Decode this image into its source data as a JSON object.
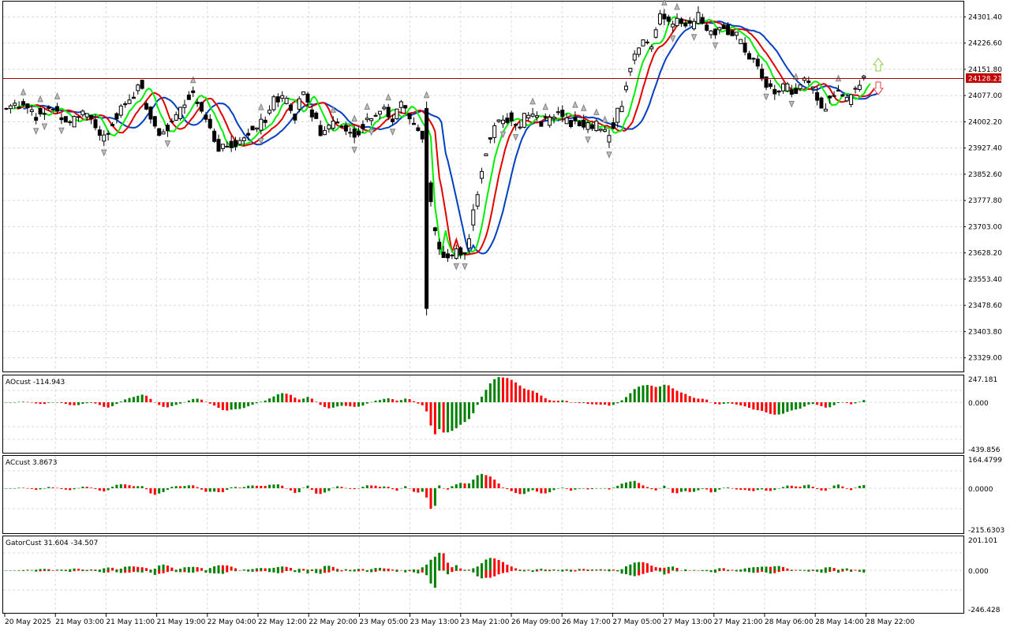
{
  "price_panel": {
    "price_labels": [
      "24301.40",
      "24226.60",
      "24151.80",
      "24077.00",
      "24002.20",
      "23927.40",
      "23852.60",
      "23777.80",
      "23703.00",
      "23628.20",
      "23553.40",
      "23478.60",
      "23403.80",
      "23329.00"
    ],
    "current_price": "24128.21"
  },
  "ao_panel": {
    "title": "AOcust -114.943",
    "axis_labels": [
      "247.181",
      "0.000",
      "-439.856"
    ]
  },
  "ac_panel": {
    "title": "ACcust 3.8673",
    "axis_labels": [
      "164.4799",
      "0.0000",
      "-215.6303"
    ]
  },
  "gator_panel": {
    "title": "GatorCust 31.604 -34.507",
    "axis_labels": [
      "201.101",
      "0.000",
      "-246.428"
    ]
  },
  "time_labels": [
    "20 May 2025",
    "21 May 03:00",
    "21 May 11:00",
    "21 May 19:00",
    "22 May 04:00",
    "22 May 12:00",
    "22 May 20:00",
    "23 May 05:00",
    "23 May 13:00",
    "23 May 21:00",
    "26 May 09:00",
    "26 May 17:00",
    "27 May 05:00",
    "27 May 13:00",
    "27 May 21:00",
    "28 May 06:00",
    "28 May 14:00",
    "28 May 22:00"
  ],
  "colors": {
    "up": "#008000",
    "down": "#ff0000",
    "fast_ma": "#00ee00",
    "mid_ma": "#e00000",
    "slow_ma": "#0040c0",
    "price_line": "#a00000",
    "candle": "#000000"
  },
  "chart_data": {
    "type": "candlestick",
    "instrument_panels": [
      "price",
      "AOcust",
      "ACcust",
      "GatorCust"
    ],
    "ylim_price": [
      23290,
      24345
    ],
    "current_price": 24128.21,
    "close_path": [
      [
        0,
        24040
      ],
      [
        8,
        24060
      ],
      [
        14,
        24020
      ],
      [
        22,
        24045
      ],
      [
        30,
        24000
      ],
      [
        38,
        24035
      ],
      [
        45,
        23950
      ],
      [
        53,
        24030
      ],
      [
        60,
        24080
      ],
      [
        63,
        24110
      ],
      [
        66,
        24045
      ],
      [
        72,
        23960
      ],
      [
        80,
        24020
      ],
      [
        87,
        24090
      ],
      [
        91,
        24060
      ],
      [
        95,
        24000
      ],
      [
        100,
        23930
      ],
      [
        107,
        23935
      ],
      [
        113,
        23970
      ],
      [
        117,
        23990
      ],
      [
        122,
        24000
      ],
      [
        126,
        24060
      ],
      [
        132,
        24070
      ],
      [
        136,
        24020
      ],
      [
        140,
        24095
      ],
      [
        143,
        24030
      ],
      [
        148,
        23975
      ],
      [
        151,
        23980
      ],
      [
        155,
        24010
      ],
      [
        158,
        23985
      ],
      [
        164,
        23965
      ],
      [
        169,
        24000
      ],
      [
        172,
        24005
      ],
      [
        178,
        24035
      ],
      [
        182,
        24010
      ],
      [
        186,
        24060
      ],
      [
        190,
        24010
      ],
      [
        195,
        23970
      ],
      [
        198,
        23890
      ],
      [
        201,
        23700
      ],
      [
        205,
        23620
      ],
      [
        210,
        23635
      ],
      [
        216,
        23615
      ],
      [
        222,
        23805
      ],
      [
        227,
        23950
      ],
      [
        232,
        23995
      ],
      [
        237,
        24015
      ],
      [
        241,
        23985
      ],
      [
        246,
        24030
      ],
      [
        251,
        24000
      ],
      [
        256,
        24010
      ],
      [
        261,
        24025
      ],
      [
        265,
        24000
      ],
      [
        272,
        24000
      ],
      [
        278,
        23990
      ],
      [
        283,
        23960
      ],
      [
        287,
        24010
      ],
      [
        290,
        24060
      ],
      [
        293,
        24140
      ],
      [
        299,
        24230
      ],
      [
        303,
        24210
      ],
      [
        308,
        24305
      ],
      [
        313,
        24285
      ],
      [
        318,
        24285
      ],
      [
        322,
        24275
      ],
      [
        326,
        24300
      ],
      [
        332,
        24260
      ],
      [
        338,
        24270
      ],
      [
        344,
        24245
      ],
      [
        349,
        24190
      ],
      [
        354,
        24160
      ],
      [
        358,
        24110
      ],
      [
        362,
        24080
      ],
      [
        366,
        24110
      ],
      [
        370,
        24085
      ],
      [
        376,
        24115
      ],
      [
        381,
        24085
      ],
      [
        385,
        24040
      ],
      [
        389,
        24080
      ],
      [
        393,
        24090
      ],
      [
        397,
        24060
      ],
      [
        401,
        24100
      ],
      [
        405,
        24125
      ]
    ],
    "ao_range": [
      -439.856,
      247.181
    ],
    "ac_range": [
      -215.6303,
      164.4799
    ],
    "gator_range": [
      -246.428,
      201.101
    ]
  }
}
